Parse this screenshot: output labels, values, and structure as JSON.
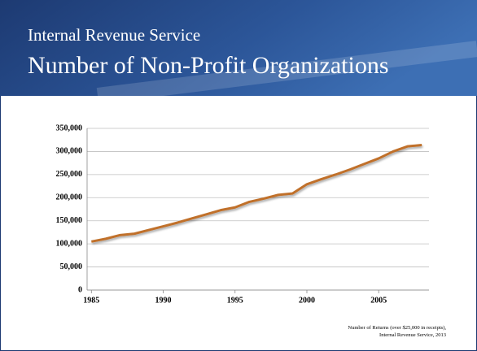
{
  "chart_data": {
    "type": "line",
    "header": "Internal Revenue Service",
    "title": "Number of Non-Profit Organizations",
    "x": [
      1985,
      1986,
      1987,
      1988,
      1989,
      1990,
      1991,
      1992,
      1993,
      1994,
      1995,
      1996,
      1997,
      1998,
      1999,
      2000,
      2001,
      2002,
      2003,
      2004,
      2005,
      2006,
      2007,
      2008
    ],
    "series": [
      {
        "name": "Number of Returns",
        "color": "#c0702a",
        "values": [
          105000,
          111000,
          119000,
          122000,
          130000,
          138000,
          146000,
          155000,
          164000,
          173000,
          179000,
          191000,
          198000,
          206000,
          209000,
          229000,
          240000,
          250000,
          261000,
          273000,
          285000,
          300000,
          311000,
          314000
        ]
      }
    ],
    "xlim": [
      1984.7,
      2008.5
    ],
    "xticks": [
      1985,
      1990,
      1995,
      2000,
      2005
    ],
    "ylim": [
      0,
      350000
    ],
    "yticks": [
      0,
      {
        "value": 50000,
        "label": "50,000"
      },
      {
        "value": 100000,
        "label": "100,000"
      },
      {
        "value": 150000,
        "label": "150,000"
      },
      {
        "value": 200000,
        "label": "200,000"
      },
      {
        "value": 250000,
        "label": "250,000"
      },
      {
        "value": 300000,
        "label": "300,000"
      },
      {
        "value": 350000,
        "label": "350,000"
      }
    ],
    "grid": true,
    "source": [
      "Number of Returns (over $25,000 in receipts),",
      "Internal Revenue Service, 2013"
    ]
  }
}
